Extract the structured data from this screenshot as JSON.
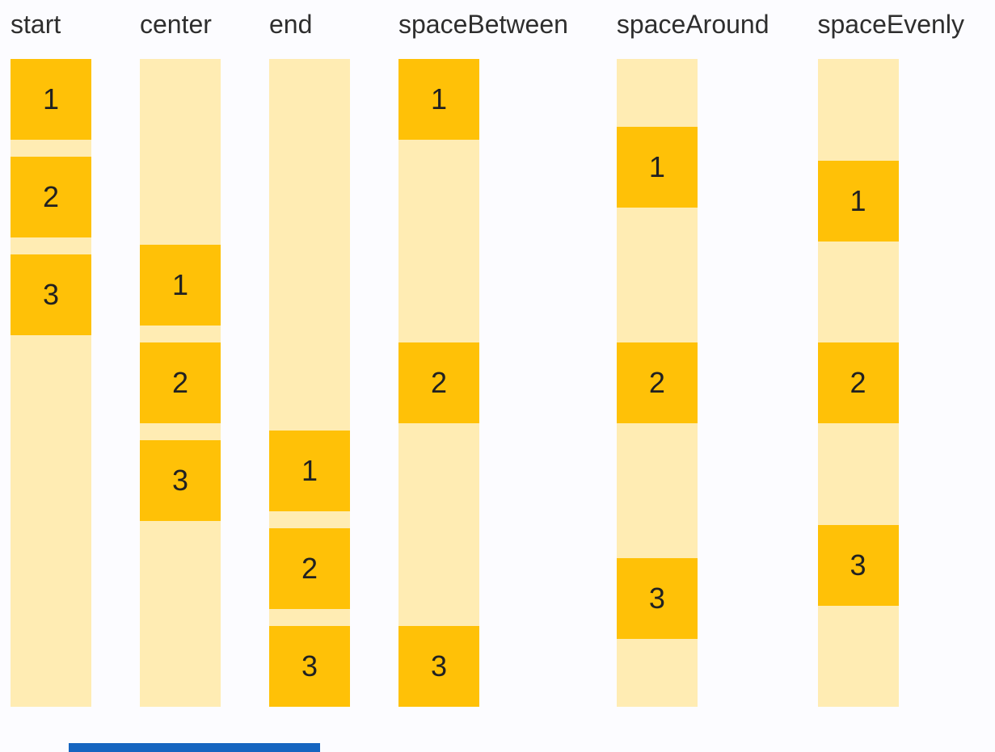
{
  "page": {
    "background_color": "#fcfcff",
    "bottom_bar_color": "#1565c0"
  },
  "demo": {
    "description": "Column mainAxisAlignment demo",
    "item_color": "#ffc107",
    "column_color": "#ffecb3",
    "label_color": "#2e2e2e",
    "number_color": "#212121",
    "groups": [
      {
        "label": "start",
        "boxes": [
          "1",
          "2",
          "3"
        ]
      },
      {
        "label": "center",
        "boxes": [
          "1",
          "2",
          "3"
        ]
      },
      {
        "label": "end",
        "boxes": [
          "1",
          "2",
          "3"
        ]
      },
      {
        "label": "spaceBetween",
        "boxes": [
          "1",
          "2",
          "3"
        ]
      },
      {
        "label": "spaceAround",
        "boxes": [
          "1",
          "2",
          "3"
        ]
      },
      {
        "label": "spaceEvenly",
        "boxes": [
          "1",
          "2",
          "3"
        ]
      }
    ]
  }
}
